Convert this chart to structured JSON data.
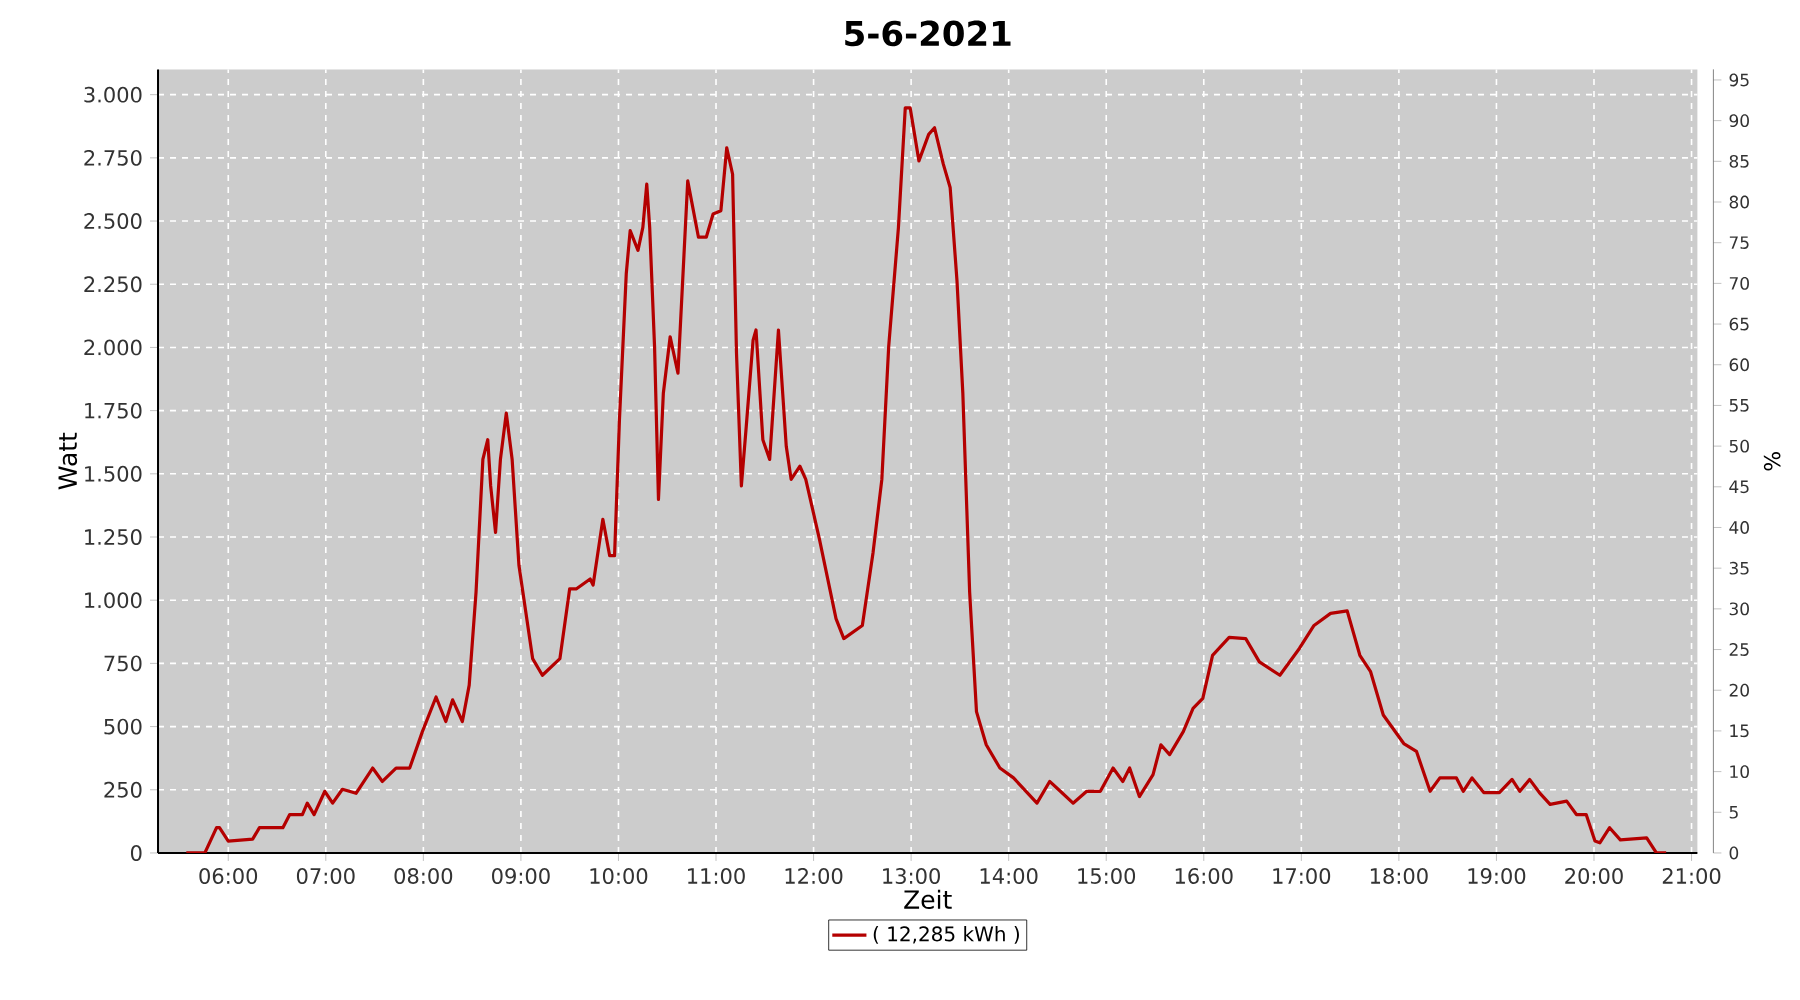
{
  "chart_data": {
    "type": "line",
    "title": "5-6-2021",
    "xlabel": "Zeit",
    "ylabel": "Watt",
    "y2label": "%",
    "x": [
      5.57,
      5.76,
      5.88,
      5.91,
      6.0,
      6.25,
      6.32,
      6.56,
      6.63,
      6.76,
      6.81,
      6.88,
      6.99,
      7.07,
      7.17,
      7.31,
      7.48,
      7.58,
      7.72,
      7.86,
      7.99,
      8.13,
      8.23,
      8.3,
      8.4,
      8.47,
      8.54,
      8.61,
      8.66,
      8.69,
      8.74,
      8.79,
      8.85,
      8.91,
      8.98,
      9.12,
      9.22,
      9.4,
      9.5,
      9.57,
      9.71,
      9.74,
      9.84,
      9.91,
      9.96,
      10.01,
      10.08,
      10.12,
      10.2,
      10.25,
      10.29,
      10.32,
      10.37,
      10.41,
      10.46,
      10.53,
      10.61,
      10.71,
      10.82,
      10.9,
      10.97,
      11.05,
      11.11,
      11.17,
      11.21,
      11.26,
      11.31,
      11.38,
      11.41,
      11.48,
      11.55,
      11.64,
      11.72,
      11.77,
      11.86,
      11.92,
      12.06,
      12.23,
      12.31,
      12.5,
      12.61,
      12.7,
      12.77,
      12.87,
      12.94,
      12.99,
      13.08,
      13.18,
      13.24,
      13.33,
      13.4,
      13.47,
      13.53,
      13.6,
      13.67,
      13.77,
      13.91,
      14.05,
      14.29,
      14.42,
      14.53,
      14.66,
      14.8,
      14.94,
      15.07,
      15.17,
      15.24,
      15.34,
      15.48,
      15.56,
      15.65,
      15.79,
      15.89,
      15.99,
      16.09,
      16.26,
      16.43,
      16.57,
      16.78,
      16.98,
      17.13,
      17.3,
      17.47,
      17.6,
      17.71,
      17.84,
      18.05,
      18.18,
      18.32,
      18.42,
      18.59,
      18.66,
      18.75,
      18.87,
      19.03,
      19.16,
      19.24,
      19.34,
      19.44,
      19.55,
      19.72,
      19.82,
      19.92,
      20.01,
      20.06,
      20.16,
      20.27,
      20.54,
      20.64,
      20.74
    ],
    "series": [
      {
        "name": "( 12,285 kWh )",
        "color": "#b40000",
        "values": [
          0,
          0,
          100,
          100,
          47,
          55,
          100,
          100,
          152,
          152,
          197,
          152,
          244,
          197,
          252,
          236,
          336,
          283,
          336,
          336,
          480,
          617,
          520,
          606,
          520,
          664,
          1032,
          1557,
          1635,
          1452,
          1268,
          1557,
          1740,
          1557,
          1137,
          769,
          703,
          769,
          1045,
          1045,
          1084,
          1060,
          1320,
          1176,
          1176,
          1714,
          2292,
          2462,
          2384,
          2475,
          2646,
          2475,
          2003,
          1399,
          1819,
          2042,
          1898,
          2659,
          2436,
          2436,
          2528,
          2541,
          2790,
          2685,
          1977,
          1452,
          1688,
          2029,
          2069,
          1635,
          1557,
          2069,
          1609,
          1478,
          1530,
          1478,
          1242,
          927,
          848,
          900,
          1189,
          1478,
          2003,
          2475,
          2948,
          2948,
          2738,
          2843,
          2869,
          2725,
          2633,
          2265,
          1819,
          1032,
          559,
          428,
          336,
          297,
          197,
          283,
          244,
          197,
          244,
          244,
          336,
          283,
          336,
          223,
          310,
          428,
          389,
          480,
          572,
          612,
          782,
          853,
          848,
          756,
          703,
          809,
          900,
          948,
          958,
          782,
          717,
          546,
          433,
          402,
          244,
          297,
          297,
          244,
          297,
          239,
          239,
          291,
          244,
          291,
          239,
          192,
          205,
          152,
          152,
          47,
          40,
          100,
          52,
          60,
          0,
          0
        ]
      }
    ],
    "xlim": [
      5.28,
      21.06
    ],
    "xticks": [
      {
        "value": 6,
        "label": "06:00"
      },
      {
        "value": 7,
        "label": "07:00"
      },
      {
        "value": 8,
        "label": "08:00"
      },
      {
        "value": 9,
        "label": "09:00"
      },
      {
        "value": 10,
        "label": "10:00"
      },
      {
        "value": 11,
        "label": "11:00"
      },
      {
        "value": 12,
        "label": "12:00"
      },
      {
        "value": 13,
        "label": "13:00"
      },
      {
        "value": 14,
        "label": "14:00"
      },
      {
        "value": 15,
        "label": "15:00"
      },
      {
        "value": 16,
        "label": "16:00"
      },
      {
        "value": 17,
        "label": "17:00"
      },
      {
        "value": 18,
        "label": "18:00"
      },
      {
        "value": 19,
        "label": "19:00"
      },
      {
        "value": 20,
        "label": "20:00"
      },
      {
        "value": 21,
        "label": "21:00"
      }
    ],
    "ylim": [
      0,
      3100
    ],
    "yticks": [
      0,
      250,
      500,
      750,
      {
        "value": 1000,
        "label": "1.000"
      },
      {
        "value": 1250,
        "label": "1.250"
      },
      {
        "value": 1500,
        "label": "1.500"
      },
      {
        "value": 1750,
        "label": "1.750"
      },
      {
        "value": 2000,
        "label": "2.000"
      },
      {
        "value": 2250,
        "label": "2.250"
      },
      {
        "value": 2500,
        "label": "2.500"
      },
      {
        "value": 2750,
        "label": "2.750"
      },
      {
        "value": 3000,
        "label": "3.000"
      }
    ],
    "y2lim": [
      0,
      96.3
    ],
    "y2ticks": [
      0,
      5,
      10,
      15,
      20,
      25,
      30,
      35,
      40,
      45,
      50,
      55,
      60,
      65,
      70,
      75,
      80,
      85,
      90,
      95
    ],
    "grid": true,
    "legend": "bottom",
    "marker": "none",
    "line_style": "solid"
  }
}
